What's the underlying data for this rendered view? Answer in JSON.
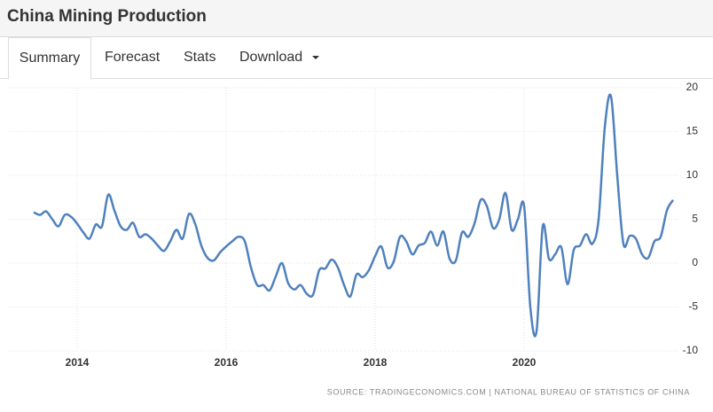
{
  "header": {
    "title": "China Mining Production"
  },
  "tabs": [
    "Summary",
    "Forecast",
    "Stats",
    "Download"
  ],
  "source": "SOURCE: TRADINGECONOMICS.COM | NATIONAL BUREAU OF STATISTICS OF CHINA",
  "chart_data": {
    "type": "line",
    "categories": [
      null,
      null,
      null,
      null,
      null,
      null,
      null,
      "2014",
      null,
      null,
      null,
      null,
      null,
      null,
      null,
      null,
      null,
      null,
      null,
      null,
      null,
      null,
      null,
      null,
      null,
      null,
      null,
      null,
      null,
      null,
      null,
      "2016",
      null,
      null,
      null,
      null,
      null,
      null,
      null,
      null,
      null,
      null,
      null,
      null,
      null,
      null,
      null,
      null,
      null,
      null,
      null,
      null,
      null,
      null,
      null,
      "2018",
      null,
      null,
      null,
      null,
      null,
      null,
      null,
      null,
      null,
      null,
      null,
      null,
      null,
      null,
      null,
      null,
      null,
      null,
      null,
      null,
      null,
      null,
      null,
      "2020",
      null,
      null,
      null,
      null,
      null,
      null,
      null,
      null,
      null,
      null,
      null,
      null,
      null,
      null,
      null,
      null,
      null,
      null,
      null,
      null,
      null,
      null,
      null,
      null
    ],
    "series": [
      {
        "name": "China Mining Production",
        "color": "#4f81bd",
        "values": [
          5.8,
          5.5,
          5.9,
          5.0,
          4.2,
          5.5,
          5.3,
          4.5,
          3.5,
          2.8,
          4.4,
          4.2,
          7.8,
          6.0,
          4.2,
          3.8,
          4.6,
          3.0,
          3.3,
          2.8,
          2.0,
          1.4,
          2.5,
          3.8,
          2.8,
          5.6,
          4.5,
          2.0,
          0.6,
          0.3,
          1.2,
          1.9,
          2.5,
          3.0,
          2.5,
          -0.5,
          -2.5,
          -2.5,
          -3.1,
          -1.5,
          0.0,
          -2.3,
          -3.0,
          -2.5,
          -3.5,
          -3.6,
          -0.8,
          -0.6,
          0.4,
          -0.5,
          -2.5,
          -3.8,
          -1.3,
          -1.6,
          -0.8,
          0.8,
          1.9,
          -0.5,
          0.2,
          3.0,
          2.5,
          1.0,
          2.0,
          2.3,
          3.6,
          2.0,
          3.6,
          0.5,
          0.3,
          3.5,
          3.0,
          4.5,
          7.2,
          6.5,
          4.0,
          5.0,
          8.0,
          3.8,
          5.0,
          6.5,
          -5.0,
          -7.8,
          4.2,
          0.5,
          1.0,
          1.8,
          -2.4,
          1.5,
          2.0,
          3.3,
          2.2,
          5.0,
          15.5,
          19.0,
          10.0,
          2.2,
          3.1,
          2.8,
          1.0,
          0.6,
          2.5,
          3.0,
          6.0,
          7.2
        ]
      }
    ],
    "ylim": [
      -10,
      20
    ],
    "yticks": [
      -10,
      -5,
      0,
      5,
      10,
      15,
      20
    ],
    "grid": true
  }
}
